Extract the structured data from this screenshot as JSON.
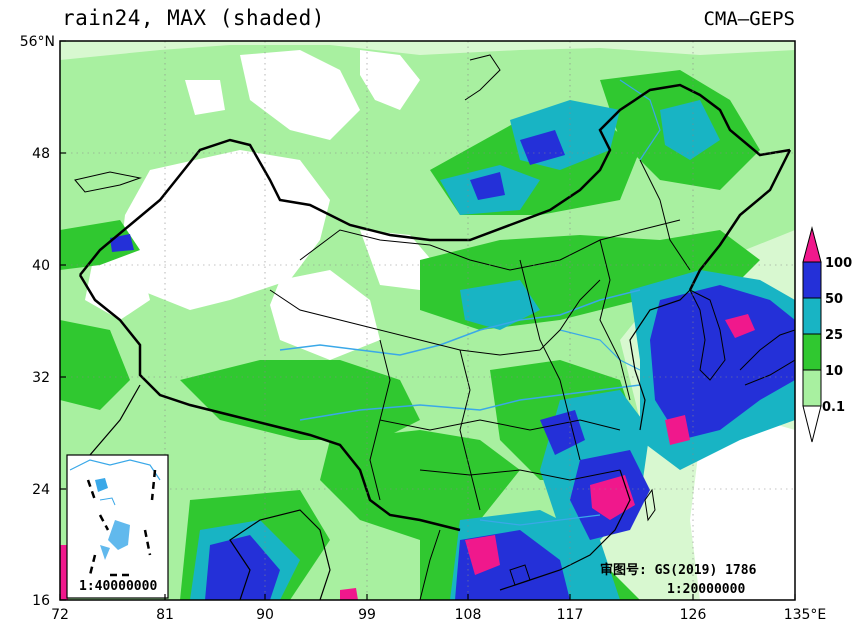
{
  "header": {
    "title": "rain24, MAX (shaded)",
    "source": "CMA—GEPS"
  },
  "axes": {
    "lat_labels": [
      "56°N",
      "48",
      "40",
      "32",
      "24",
      "16"
    ],
    "lon_labels": [
      "72",
      "81",
      "90",
      "99",
      "108",
      "117",
      "126",
      "135°E"
    ],
    "lat_range": [
      16,
      56
    ],
    "lon_range": [
      72,
      135
    ]
  },
  "colorbar": {
    "labels": [
      "100",
      "50",
      "25",
      "10",
      "0.1"
    ],
    "colors": [
      "#ff1493",
      "#2030e0",
      "#10b8c8",
      "#18b818",
      "#98f098",
      "#e6fbe6"
    ]
  },
  "map_colors": {
    "land_ocean_bg": "#ffffff",
    "light_green": "#a8f0a0",
    "pale_green": "#d8f8d0",
    "green": "#30c830",
    "cyan": "#18b4c4",
    "blue": "#2430d8",
    "magenta": "#f0188c",
    "river": "#3aa8e8",
    "border": "#000000"
  },
  "notes": {
    "approval": "审图号: GS(2019) 1786",
    "scale": "1:20000000",
    "inset_scale": "1:40000000"
  }
}
